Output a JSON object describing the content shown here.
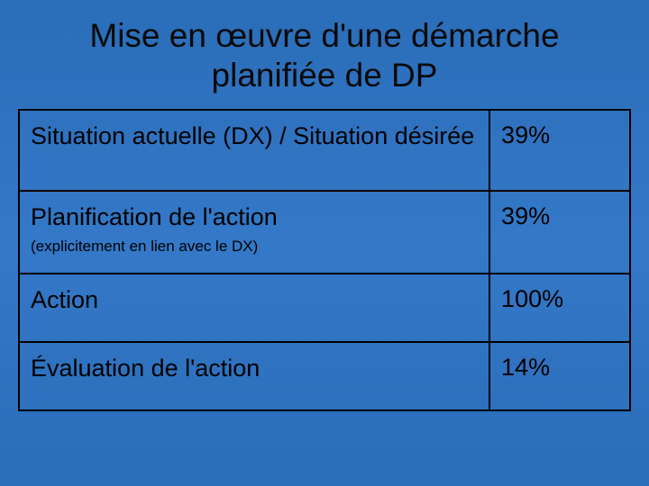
{
  "slide": {
    "title": "Mise en œuvre d'une démarche planifiée de DP",
    "background_gradient": [
      "#2a6db8",
      "#3478c8",
      "#2a6db8"
    ],
    "title_color": "#0a0a0a",
    "title_fontsize": 37,
    "table": {
      "border_color": "#000000",
      "border_width": 2,
      "text_color": "#000000",
      "label_fontsize": 27,
      "value_fontsize": 27,
      "subtext_fontsize": 17,
      "column_widths": [
        "77%",
        "23%"
      ],
      "rows": [
        {
          "label": "Situation actuelle (DX) / Situation désirée",
          "subtext": "",
          "value": "39%"
        },
        {
          "label": "Planification de l'action",
          "subtext": "(explicitement en lien avec le DX)",
          "value": "39%"
        },
        {
          "label": "Action",
          "subtext": "",
          "value": "100%"
        },
        {
          "label": "Évaluation de l'action",
          "subtext": "",
          "value": "14%"
        }
      ]
    }
  }
}
